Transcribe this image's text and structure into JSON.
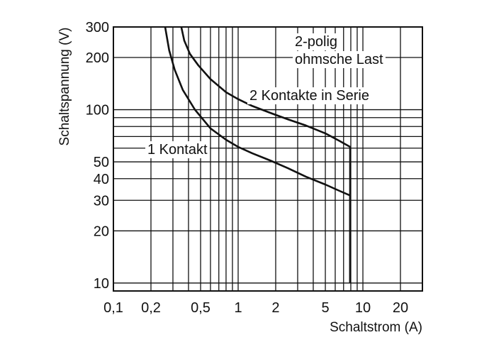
{
  "chart_data": {
    "type": "line",
    "title": "",
    "xlabel": "Schaltstrom (A)",
    "ylabel": "Schaltspannung (V)",
    "xscale": "log",
    "yscale": "log",
    "xlim": [
      0.1,
      30
    ],
    "ylim": [
      9,
      300
    ],
    "grid": true,
    "line_color": "#111111",
    "xticks": [
      {
        "value": 0.1,
        "label": "0,1"
      },
      {
        "value": 0.2,
        "label": "0,2"
      },
      {
        "value": 0.5,
        "label": "0,5"
      },
      {
        "value": 1,
        "label": "1"
      },
      {
        "value": 2,
        "label": "2"
      },
      {
        "value": 5,
        "label": "5"
      },
      {
        "value": 10,
        "label": "10"
      },
      {
        "value": 20,
        "label": "20"
      }
    ],
    "yticks": [
      {
        "value": 10,
        "label": "10"
      },
      {
        "value": 20,
        "label": "20"
      },
      {
        "value": 30,
        "label": "30"
      },
      {
        "value": 40,
        "label": "40"
      },
      {
        "value": 50,
        "label": "50"
      },
      {
        "value": 100,
        "label": "100"
      },
      {
        "value": 200,
        "label": "200"
      },
      {
        "value": 300,
        "label": "300"
      }
    ],
    "annotations": [
      "2-polig",
      "ohmsche Last"
    ],
    "series": [
      {
        "name": "1 Kontakt",
        "points": [
          [
            0.26,
            300
          ],
          [
            0.28,
            220
          ],
          [
            0.31,
            170
          ],
          [
            0.36,
            130
          ],
          [
            0.45,
            100
          ],
          [
            0.6,
            78
          ],
          [
            0.8,
            67
          ],
          [
            1.0,
            61
          ],
          [
            1.3,
            56
          ],
          [
            1.8,
            51
          ],
          [
            2.5,
            46
          ],
          [
            3.5,
            41
          ],
          [
            5.0,
            37
          ],
          [
            6.5,
            34
          ],
          [
            7.9,
            32
          ],
          [
            7.9,
            10
          ]
        ]
      },
      {
        "name": "2 Kontakte in Serie",
        "points": [
          [
            0.35,
            300
          ],
          [
            0.37,
            250
          ],
          [
            0.41,
            210
          ],
          [
            0.48,
            180
          ],
          [
            0.6,
            150
          ],
          [
            0.8,
            126
          ],
          [
            1.0,
            115
          ],
          [
            1.3,
            105
          ],
          [
            1.8,
            96
          ],
          [
            2.5,
            88
          ],
          [
            3.5,
            81
          ],
          [
            5.0,
            73
          ],
          [
            6.5,
            66
          ],
          [
            7.9,
            61
          ],
          [
            7.9,
            10
          ]
        ]
      }
    ]
  }
}
